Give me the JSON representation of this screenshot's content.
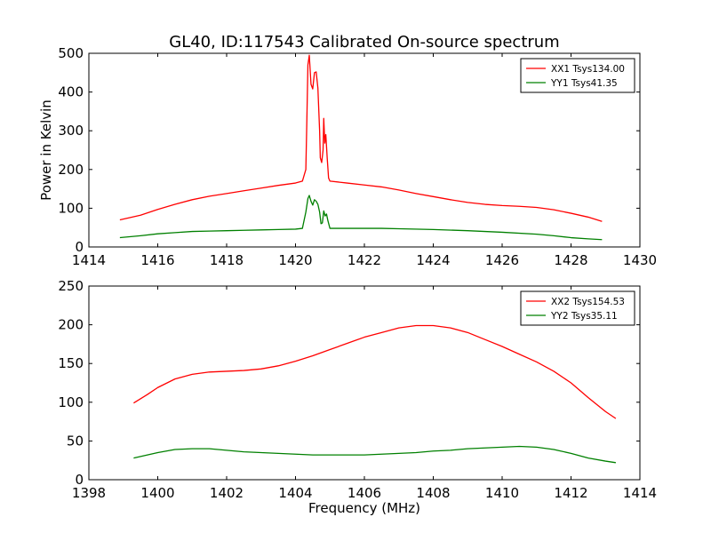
{
  "title": "GL40, ID:117543 Calibrated On-source spectrum",
  "chart_data": [
    {
      "type": "line",
      "xlabel": "",
      "ylabel": "Power in Kelvin",
      "xlim": [
        1414,
        1430
      ],
      "ylim": [
        0,
        500
      ],
      "xticks": [
        "1414",
        "1416",
        "1418",
        "1420",
        "1422",
        "1424",
        "1426",
        "1428",
        "1430"
      ],
      "yticks": [
        "0",
        "100",
        "200",
        "300",
        "400",
        "500"
      ],
      "legend_position": "top-right",
      "series": [
        {
          "name": "XX1 Tsys134.00",
          "color": "#ff0000",
          "points": [
            [
              1414.9,
              70
            ],
            [
              1415.5,
              82
            ],
            [
              1416,
              97
            ],
            [
              1416.5,
              110
            ],
            [
              1417,
              122
            ],
            [
              1417.5,
              131
            ],
            [
              1418,
              138
            ],
            [
              1418.5,
              145
            ],
            [
              1419,
              152
            ],
            [
              1419.5,
              159
            ],
            [
              1420,
              165
            ],
            [
              1420.2,
              170
            ],
            [
              1420.3,
              200
            ],
            [
              1420.33,
              330
            ],
            [
              1420.36,
              470
            ],
            [
              1420.4,
              495
            ],
            [
              1420.45,
              420
            ],
            [
              1420.5,
              408
            ],
            [
              1420.55,
              450
            ],
            [
              1420.6,
              452
            ],
            [
              1420.65,
              410
            ],
            [
              1420.7,
              300
            ],
            [
              1420.72,
              230
            ],
            [
              1420.76,
              218
            ],
            [
              1420.8,
              250
            ],
            [
              1420.82,
              332
            ],
            [
              1420.85,
              268
            ],
            [
              1420.88,
              290
            ],
            [
              1420.92,
              230
            ],
            [
              1420.96,
              178
            ],
            [
              1421,
              170
            ],
            [
              1421.5,
              165
            ],
            [
              1422,
              160
            ],
            [
              1422.5,
              155
            ],
            [
              1423,
              147
            ],
            [
              1423.5,
              138
            ],
            [
              1424,
              130
            ],
            [
              1424.5,
              122
            ],
            [
              1425,
              115
            ],
            [
              1425.5,
              110
            ],
            [
              1426,
              107
            ],
            [
              1426.5,
              105
            ],
            [
              1427,
              102
            ],
            [
              1427.5,
              96
            ],
            [
              1428,
              87
            ],
            [
              1428.5,
              77
            ],
            [
              1428.9,
              66
            ]
          ]
        },
        {
          "name": "YY1 Tsys41.35",
          "color": "#008000",
          "points": [
            [
              1414.9,
              24
            ],
            [
              1415.5,
              29
            ],
            [
              1416,
              34
            ],
            [
              1416.5,
              37
            ],
            [
              1417,
              40
            ],
            [
              1417.5,
              41
            ],
            [
              1418,
              42
            ],
            [
              1418.5,
              43
            ],
            [
              1419,
              44
            ],
            [
              1419.5,
              45
            ],
            [
              1420,
              46
            ],
            [
              1420.2,
              48
            ],
            [
              1420.3,
              90
            ],
            [
              1420.36,
              125
            ],
            [
              1420.4,
              133
            ],
            [
              1420.45,
              118
            ],
            [
              1420.5,
              108
            ],
            [
              1420.55,
              122
            ],
            [
              1420.6,
              118
            ],
            [
              1420.65,
              110
            ],
            [
              1420.7,
              90
            ],
            [
              1420.74,
              60
            ],
            [
              1420.78,
              62
            ],
            [
              1420.82,
              93
            ],
            [
              1420.86,
              80
            ],
            [
              1420.9,
              85
            ],
            [
              1420.94,
              68
            ],
            [
              1421,
              48
            ],
            [
              1421.5,
              48
            ],
            [
              1422,
              48
            ],
            [
              1422.5,
              48
            ],
            [
              1423,
              47
            ],
            [
              1424,
              45
            ],
            [
              1425,
              42
            ],
            [
              1426,
              38
            ],
            [
              1427,
              33
            ],
            [
              1427.5,
              29
            ],
            [
              1428,
              24
            ],
            [
              1428.5,
              21
            ],
            [
              1428.9,
              19
            ]
          ]
        }
      ]
    },
    {
      "type": "line",
      "xlabel": "Frequency (MHz)",
      "ylabel": "",
      "xlim": [
        1398,
        1414
      ],
      "ylim": [
        0,
        250
      ],
      "xticks": [
        "1398",
        "1400",
        "1402",
        "1404",
        "1406",
        "1408",
        "1410",
        "1412",
        "1414"
      ],
      "yticks": [
        "0",
        "50",
        "100",
        "150",
        "200",
        "250"
      ],
      "legend_position": "top-right",
      "series": [
        {
          "name": "XX2 Tsys154.53",
          "color": "#ff0000",
          "points": [
            [
              1399.3,
              99
            ],
            [
              1399.7,
              110
            ],
            [
              1400,
              119
            ],
            [
              1400.5,
              130
            ],
            [
              1401,
              136
            ],
            [
              1401.5,
              139
            ],
            [
              1402,
              140
            ],
            [
              1402.5,
              141
            ],
            [
              1403,
              143
            ],
            [
              1403.5,
              147
            ],
            [
              1404,
              153
            ],
            [
              1404.5,
              160
            ],
            [
              1405,
              168
            ],
            [
              1405.5,
              176
            ],
            [
              1406,
              184
            ],
            [
              1406.5,
              190
            ],
            [
              1407,
              196
            ],
            [
              1407.5,
              199
            ],
            [
              1408,
              199
            ],
            [
              1408.5,
              196
            ],
            [
              1409,
              190
            ],
            [
              1409.5,
              181
            ],
            [
              1410,
              172
            ],
            [
              1410.5,
              162
            ],
            [
              1411,
              152
            ],
            [
              1411.5,
              140
            ],
            [
              1412,
              125
            ],
            [
              1412.5,
              106
            ],
            [
              1413,
              88
            ],
            [
              1413.3,
              79
            ]
          ]
        },
        {
          "name": "YY2 Tsys35.11",
          "color": "#008000",
          "points": [
            [
              1399.3,
              28
            ],
            [
              1399.7,
              32
            ],
            [
              1400,
              35
            ],
            [
              1400.5,
              39
            ],
            [
              1401,
              40
            ],
            [
              1401.5,
              40
            ],
            [
              1402,
              38
            ],
            [
              1402.5,
              36
            ],
            [
              1403,
              35
            ],
            [
              1403.5,
              34
            ],
            [
              1404,
              33
            ],
            [
              1404.5,
              32
            ],
            [
              1405,
              32
            ],
            [
              1405.5,
              32
            ],
            [
              1406,
              32
            ],
            [
              1406.5,
              33
            ],
            [
              1407,
              34
            ],
            [
              1407.5,
              35
            ],
            [
              1408,
              37
            ],
            [
              1408.5,
              38
            ],
            [
              1409,
              40
            ],
            [
              1409.5,
              41
            ],
            [
              1410,
              42
            ],
            [
              1410.5,
              43
            ],
            [
              1411,
              42
            ],
            [
              1411.5,
              39
            ],
            [
              1412,
              34
            ],
            [
              1412.5,
              28
            ],
            [
              1413,
              24
            ],
            [
              1413.3,
              22
            ]
          ]
        }
      ]
    }
  ]
}
